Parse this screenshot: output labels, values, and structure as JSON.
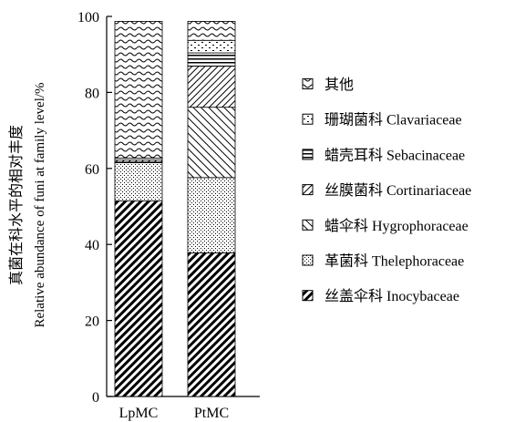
{
  "chart_data": {
    "type": "bar",
    "stacked": true,
    "categories": [
      "LpMC",
      "PtMC"
    ],
    "ylabel_cn": "真菌在科水平的相对丰度",
    "ylabel_en": "Relative abundance of funi at family level/%",
    "ylim": [
      0,
      100
    ],
    "yticks": [
      "0",
      "20",
      "40",
      "60",
      "80",
      "100"
    ],
    "series": [
      {
        "name": "丝盖伞科 Inocybaceae",
        "pattern": "dense-diag",
        "values": [
          51.5,
          37.8
        ]
      },
      {
        "name": "革菌科 Thelephoraceae",
        "pattern": "dots",
        "values": [
          10.0,
          19.8
        ]
      },
      {
        "name": "蜡伞科 Hygrophoraceae",
        "pattern": "back-diag",
        "values": [
          0.2,
          18.5
        ]
      },
      {
        "name": "丝膜菌科 Cortinariaceae",
        "pattern": "fwd-diag",
        "values": [
          0.5,
          10.8
        ]
      },
      {
        "name": "蜡壳耳科 Sebacinaceae",
        "pattern": "horiz",
        "values": [
          0.5,
          3.5
        ]
      },
      {
        "name": "珊瑚菌科 Clavariaceae",
        "pattern": "dashes",
        "values": [
          0,
          3.3
        ]
      },
      {
        "name": "其他",
        "pattern": "wave",
        "values": [
          36.0,
          5.0
        ]
      }
    ],
    "legend_order": [
      6,
      5,
      4,
      3,
      2,
      1,
      0
    ],
    "legend_position": "right",
    "grid": false
  }
}
